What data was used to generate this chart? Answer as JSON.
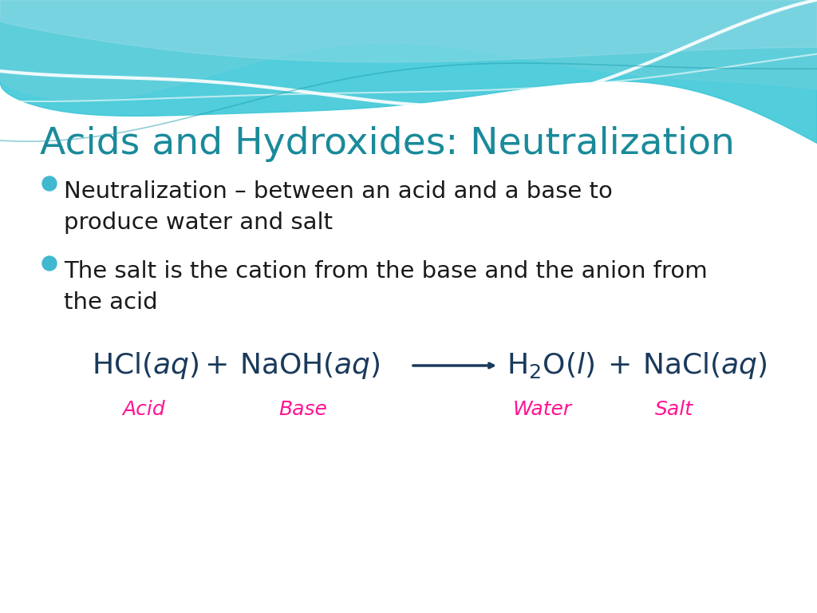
{
  "title": "Acids and Hydroxides: Neutralization",
  "title_color": "#1a8a9a",
  "title_fontsize": 34,
  "bullet_color": "#40b8d0",
  "bullet_points": [
    "Neutralization – between an acid and a base to\nproduce water and salt",
    "The salt is the cation from the base and the anion from\nthe acid"
  ],
  "bullet_fontsize": 21,
  "text_color": "#1a1a1a",
  "label_color": "#ff1493",
  "label_fontsize": 18,
  "equation_fontsize": 26,
  "equation_color": "#1a3a5c",
  "bg_color": "#ffffff",
  "teal_dark": "#3ec8d8",
  "teal_light": "#a0dde8",
  "teal_mid": "#6dcfdc"
}
